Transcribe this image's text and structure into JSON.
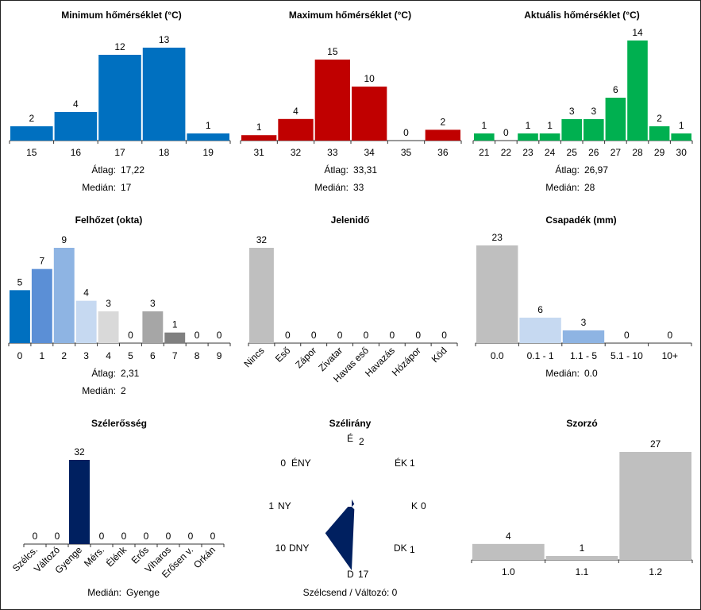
{
  "chart_data": [
    {
      "id": "min",
      "type": "bar",
      "title": "Minimum hőmérséklet (°C)",
      "categories": [
        "15",
        "16",
        "17",
        "18",
        "19"
      ],
      "values": [
        2,
        4,
        12,
        13,
        1
      ],
      "colors": [
        "#0070c0",
        "#0070c0",
        "#0070c0",
        "#0070c0",
        "#0070c0"
      ],
      "ylim": [
        0,
        13
      ],
      "stats": [
        {
          "label": "Átlag:",
          "value": "17,22"
        },
        {
          "label": "Medián:",
          "value": "17"
        }
      ]
    },
    {
      "id": "max",
      "type": "bar",
      "title": "Maximum hőmérséklet (°C)",
      "categories": [
        "31",
        "32",
        "33",
        "34",
        "35",
        "36"
      ],
      "values": [
        1,
        4,
        15,
        10,
        0,
        2
      ],
      "colors": [
        "#c00000",
        "#c00000",
        "#c00000",
        "#c00000",
        "#c00000",
        "#c00000"
      ],
      "ylim": [
        0,
        15
      ],
      "stats": [
        {
          "label": "Átlag:",
          "value": "33,31"
        },
        {
          "label": "Medián:",
          "value": "33"
        }
      ]
    },
    {
      "id": "act",
      "type": "bar",
      "title": "Aktuális hőmérséklet (°C)",
      "categories": [
        "21",
        "22",
        "23",
        "24",
        "25",
        "26",
        "27",
        "28",
        "29",
        "30"
      ],
      "values": [
        1,
        0,
        1,
        1,
        3,
        3,
        6,
        14,
        2,
        1
      ],
      "colors": [
        "#00b050",
        "#00b050",
        "#00b050",
        "#00b050",
        "#00b050",
        "#00b050",
        "#00b050",
        "#00b050",
        "#00b050",
        "#00b050"
      ],
      "ylim": [
        0,
        14
      ],
      "stats": [
        {
          "label": "Átlag:",
          "value": "26,97"
        },
        {
          "label": "Medián:",
          "value": "28"
        }
      ]
    },
    {
      "id": "cloud",
      "type": "bar",
      "title": "Felhőzet (okta)",
      "categories": [
        "0",
        "1",
        "2",
        "3",
        "4",
        "5",
        "6",
        "7",
        "8",
        "9"
      ],
      "values": [
        5,
        7,
        9,
        4,
        3,
        0,
        3,
        1,
        0,
        0
      ],
      "colors": [
        "#0070c0",
        "#5b8fd6",
        "#8eb4e3",
        "#c6d9f1",
        "#d9d9d9",
        "#d9d9d9",
        "#a6a6a6",
        "#808080",
        "#595959",
        "#404040"
      ],
      "ylim": [
        0,
        9
      ],
      "stats": [
        {
          "label": "Átlag:",
          "value": "2,31"
        },
        {
          "label": "Medián:",
          "value": "2"
        }
      ]
    },
    {
      "id": "pres",
      "type": "bar",
      "title": "Jelenidő",
      "categories": [
        "Nincs",
        "Eső",
        "Zápor",
        "Zivatar",
        "Havas eső",
        "Havazás",
        "Hózápor",
        "Köd"
      ],
      "values": [
        32,
        0,
        0,
        0,
        0,
        0,
        0,
        0
      ],
      "colors": [
        "#bfbfbf",
        "#bfbfbf",
        "#bfbfbf",
        "#bfbfbf",
        "#bfbfbf",
        "#bfbfbf",
        "#bfbfbf",
        "#bfbfbf"
      ],
      "ylim": [
        0,
        32
      ],
      "rotateLabels": true,
      "stats": []
    },
    {
      "id": "precip",
      "type": "bar",
      "title": "Csapadék (mm)",
      "categories": [
        "0.0",
        "0.1 - 1",
        "1.1 - 5",
        "5.1 - 10",
        "10+"
      ],
      "values": [
        23,
        6,
        3,
        0,
        0
      ],
      "colors": [
        "#bfbfbf",
        "#c6d9f1",
        "#8eb4e3",
        "#5b8fd6",
        "#0070c0"
      ],
      "ylim": [
        0,
        23
      ],
      "stats": [
        {
          "label": "Medián:",
          "value": "0.0"
        }
      ]
    },
    {
      "id": "wind",
      "type": "bar",
      "title": "Szélerősség",
      "categories": [
        "Szélcs.",
        "Változó",
        "Gyenge",
        "Mérs.",
        "Élénk",
        "Erős",
        "Viharos",
        "Erősen v.",
        "Orkán"
      ],
      "values": [
        0,
        0,
        32,
        0,
        0,
        0,
        0,
        0,
        0
      ],
      "colors": [
        "#002060",
        "#002060",
        "#002060",
        "#002060",
        "#002060",
        "#002060",
        "#002060",
        "#002060",
        "#002060"
      ],
      "ylim": [
        0,
        32
      ],
      "rotateLabels": true,
      "stats": [
        {
          "label": "Medián:",
          "value": "Gyenge"
        }
      ]
    },
    {
      "id": "dir",
      "type": "rose",
      "title": "Szélirány",
      "directions": [
        {
          "label": "É",
          "value": 2
        },
        {
          "label": "ÉK",
          "value": 1
        },
        {
          "label": "K",
          "value": 0
        },
        {
          "label": "DK",
          "value": 1
        },
        {
          "label": "D",
          "value": 17
        },
        {
          "label": "DNY",
          "value": 10
        },
        {
          "label": "NY",
          "value": 1
        },
        {
          "label": "ÉNY",
          "value": 0
        }
      ],
      "max": 17,
      "color": "#002060",
      "footer": "Szélcsend / Változó: 0"
    },
    {
      "id": "mult",
      "type": "bar",
      "title": "Szorzó",
      "categories": [
        "1.0",
        "1.1",
        "1.2"
      ],
      "values": [
        4,
        1,
        27
      ],
      "colors": [
        "#bfbfbf",
        "#bfbfbf",
        "#bfbfbf"
      ],
      "ylim": [
        0,
        27
      ],
      "stats": []
    }
  ]
}
